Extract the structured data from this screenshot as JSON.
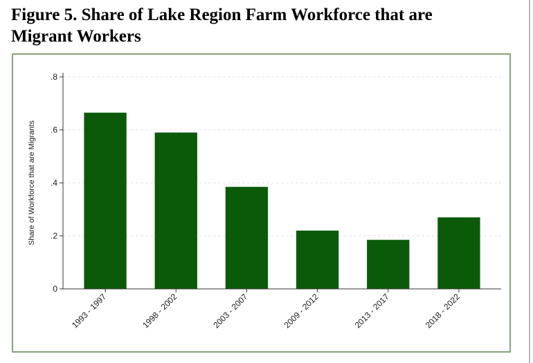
{
  "figure": {
    "title_line1": "Figure 5. Share of Lake Region Farm Workforce that are",
    "title_line2": "Migrant Workers"
  },
  "chart_data": {
    "type": "bar",
    "title": "",
    "xlabel": "",
    "ylabel": "Share of Workforce that are Migrants",
    "categories": [
      "1993 - 1997",
      "1998 - 2002",
      "2003 - 2007",
      "2009 - 2012",
      "2013 - 2017",
      "2018 - 2022"
    ],
    "values": [
      0.665,
      0.59,
      0.385,
      0.22,
      0.185,
      0.27
    ],
    "ylim": [
      0,
      0.8
    ],
    "yticks": [
      0,
      0.2,
      0.4,
      0.6,
      0.8
    ],
    "ytick_labels": [
      "0",
      ".2",
      ".4",
      ".6",
      ".8"
    ],
    "grid": true,
    "legend": "none",
    "bar_color": "#0a5a0a",
    "frame_color": "#8aa07a",
    "grid_color": "#e6e6e6"
  }
}
